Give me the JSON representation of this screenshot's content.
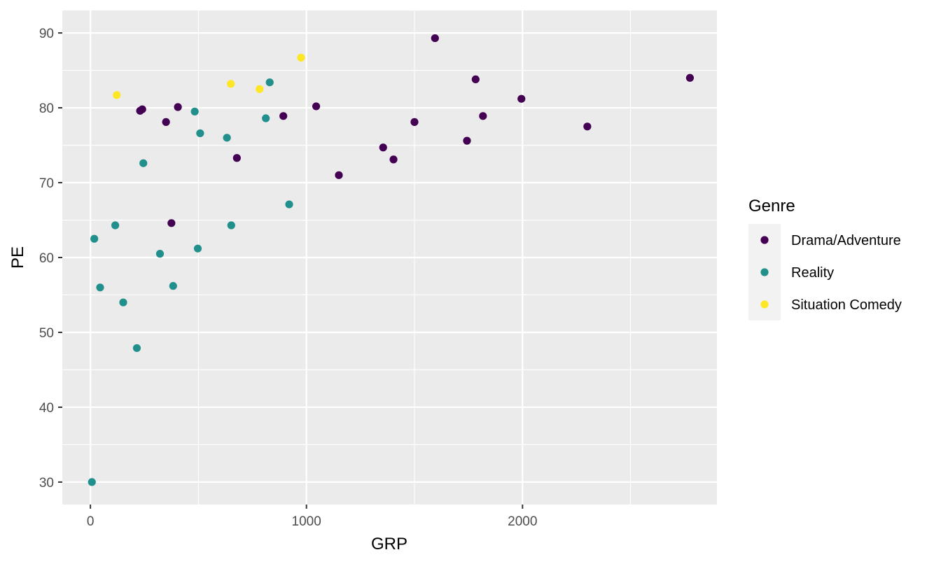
{
  "chart_data": {
    "type": "scatter",
    "xlabel": "GRP",
    "ylabel": "PE",
    "xlim": [
      -130,
      2900
    ],
    "ylim": [
      27,
      93
    ],
    "x_ticks": [
      0,
      1000,
      2000
    ],
    "x_tick_labels": [
      "0",
      "1000",
      "2000"
    ],
    "x_minor_ticks": [
      500,
      1500,
      2500
    ],
    "y_ticks": [
      30,
      40,
      50,
      60,
      70,
      80,
      90
    ],
    "y_tick_labels": [
      "30",
      "40",
      "50",
      "60",
      "70",
      "80",
      "90"
    ],
    "y_minor_ticks": [
      35,
      45,
      55,
      65,
      75,
      85
    ],
    "grid": true,
    "legend": {
      "title": "Genre",
      "placement": "right"
    },
    "series": [
      {
        "name": "Drama/Adventure",
        "color": "#440154",
        "points": [
          [
            230,
            79.6
          ],
          [
            240,
            79.8
          ],
          [
            350,
            78.1
          ],
          [
            375,
            64.6
          ],
          [
            405,
            80.1
          ],
          [
            678,
            73.3
          ],
          [
            893,
            78.9
          ],
          [
            1045,
            80.2
          ],
          [
            1150,
            71.0
          ],
          [
            1355,
            74.7
          ],
          [
            1403,
            73.1
          ],
          [
            1500,
            78.1
          ],
          [
            1595,
            89.3
          ],
          [
            1743,
            75.6
          ],
          [
            1783,
            83.8
          ],
          [
            1817,
            78.9
          ],
          [
            1995,
            81.2
          ],
          [
            2300,
            77.5
          ],
          [
            2775,
            84.0
          ]
        ]
      },
      {
        "name": "Reality",
        "color": "#21908C",
        "points": [
          [
            7,
            30.0
          ],
          [
            18,
            62.5
          ],
          [
            45,
            56.0
          ],
          [
            115,
            64.3
          ],
          [
            152,
            54.0
          ],
          [
            215,
            47.9
          ],
          [
            245,
            72.6
          ],
          [
            322,
            60.5
          ],
          [
            383,
            56.2
          ],
          [
            483,
            79.5
          ],
          [
            497,
            61.2
          ],
          [
            508,
            76.6
          ],
          [
            632,
            76.0
          ],
          [
            652,
            64.3
          ],
          [
            812,
            78.6
          ],
          [
            830,
            83.4
          ],
          [
            920,
            67.1
          ]
        ]
      },
      {
        "name": "Situation Comedy",
        "color": "#FDE725",
        "points": [
          [
            122,
            81.7
          ],
          [
            650,
            83.2
          ],
          [
            783,
            82.5
          ],
          [
            975,
            86.7
          ]
        ]
      }
    ]
  }
}
